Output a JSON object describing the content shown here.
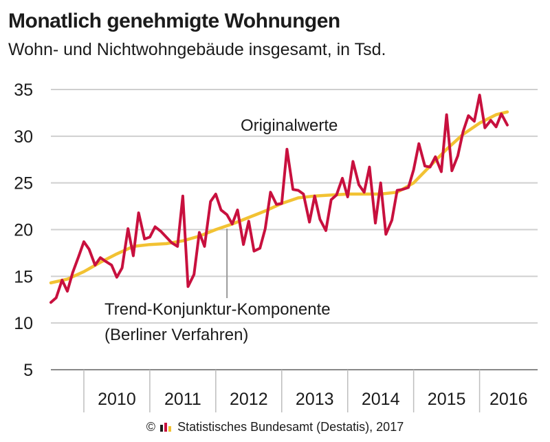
{
  "title": "Monatlich genehmigte Wohnungen",
  "subtitle": "Wohn- und Nichtwohngebäude insgesamt, in Tsd.",
  "footer": {
    "copyright_symbol": "©",
    "text": "Statistisches Bundesamt (Destatis), 2017"
  },
  "colors": {
    "original": "#c8103e",
    "trend": "#f2c233",
    "grid": "#cfcfcf",
    "text": "#1b1b1b"
  },
  "chart_data": {
    "type": "line",
    "title": "Monatlich genehmigte Wohnungen",
    "subtitle": "Wohn- und Nichtwohngebäude insgesamt, in Tsd.",
    "ylim": [
      5,
      35
    ],
    "yticks": [
      "5",
      "10",
      "15",
      "20",
      "25",
      "30",
      "35"
    ],
    "xlim": [
      2009.5,
      2016.88
    ],
    "xticks": [
      "2010",
      "2011",
      "2012",
      "2013",
      "2014",
      "2015",
      "2016"
    ],
    "grid": "horizontal",
    "series": [
      {
        "name": "Originalwerte",
        "color": "#c8103e",
        "points": [
          [
            2009.5,
            12.2
          ],
          [
            2009.58,
            12.7
          ],
          [
            2009.67,
            14.6
          ],
          [
            2009.75,
            13.4
          ],
          [
            2009.83,
            15.4
          ],
          [
            2009.92,
            17.1
          ],
          [
            2010.0,
            18.7
          ],
          [
            2010.08,
            17.9
          ],
          [
            2010.17,
            16.2
          ],
          [
            2010.25,
            17.0
          ],
          [
            2010.33,
            16.6
          ],
          [
            2010.42,
            16.2
          ],
          [
            2010.5,
            14.9
          ],
          [
            2010.58,
            15.9
          ],
          [
            2010.67,
            20.1
          ],
          [
            2010.75,
            17.2
          ],
          [
            2010.83,
            21.8
          ],
          [
            2010.92,
            19.0
          ],
          [
            2011.0,
            19.2
          ],
          [
            2011.08,
            20.3
          ],
          [
            2011.17,
            19.8
          ],
          [
            2011.25,
            19.2
          ],
          [
            2011.33,
            18.6
          ],
          [
            2011.42,
            18.2
          ],
          [
            2011.5,
            23.6
          ],
          [
            2011.58,
            13.9
          ],
          [
            2011.67,
            15.2
          ],
          [
            2011.75,
            19.7
          ],
          [
            2011.83,
            18.2
          ],
          [
            2011.92,
            23.0
          ],
          [
            2012.0,
            23.8
          ],
          [
            2012.08,
            22.1
          ],
          [
            2012.17,
            21.6
          ],
          [
            2012.25,
            20.6
          ],
          [
            2012.33,
            22.1
          ],
          [
            2012.42,
            18.4
          ],
          [
            2012.5,
            20.9
          ],
          [
            2012.58,
            17.7
          ],
          [
            2012.67,
            18.0
          ],
          [
            2012.75,
            20.1
          ],
          [
            2012.83,
            24.0
          ],
          [
            2012.92,
            22.7
          ],
          [
            2013.0,
            22.8
          ],
          [
            2013.08,
            28.6
          ],
          [
            2013.17,
            24.3
          ],
          [
            2013.25,
            24.2
          ],
          [
            2013.33,
            23.8
          ],
          [
            2013.42,
            20.8
          ],
          [
            2013.5,
            23.6
          ],
          [
            2013.58,
            21.1
          ],
          [
            2013.67,
            19.9
          ],
          [
            2013.75,
            23.2
          ],
          [
            2013.83,
            23.7
          ],
          [
            2013.92,
            25.5
          ],
          [
            2014.0,
            23.5
          ],
          [
            2014.08,
            27.3
          ],
          [
            2014.17,
            24.8
          ],
          [
            2014.25,
            24.0
          ],
          [
            2014.33,
            26.7
          ],
          [
            2014.42,
            20.7
          ],
          [
            2014.5,
            25.0
          ],
          [
            2014.58,
            19.5
          ],
          [
            2014.67,
            21.0
          ],
          [
            2014.75,
            24.2
          ],
          [
            2014.83,
            24.3
          ],
          [
            2014.92,
            24.5
          ],
          [
            2015.0,
            26.4
          ],
          [
            2015.08,
            29.2
          ],
          [
            2015.17,
            26.8
          ],
          [
            2015.25,
            26.7
          ],
          [
            2015.33,
            27.8
          ],
          [
            2015.42,
            26.2
          ],
          [
            2015.5,
            32.3
          ],
          [
            2015.58,
            26.3
          ],
          [
            2015.67,
            27.9
          ],
          [
            2015.75,
            30.5
          ],
          [
            2015.83,
            32.2
          ],
          [
            2015.92,
            31.6
          ],
          [
            2016.0,
            34.4
          ],
          [
            2016.08,
            30.9
          ],
          [
            2016.17,
            31.7
          ],
          [
            2016.25,
            31.0
          ],
          [
            2016.33,
            32.4
          ],
          [
            2016.42,
            31.2
          ]
        ]
      },
      {
        "name": "Trend-Konjunktur-Komponente",
        "color": "#f2c233",
        "points": [
          [
            2009.5,
            14.3
          ],
          [
            2009.75,
            14.7
          ],
          [
            2010.0,
            15.5
          ],
          [
            2010.25,
            16.5
          ],
          [
            2010.5,
            17.4
          ],
          [
            2010.75,
            18.2
          ],
          [
            2011.0,
            18.4
          ],
          [
            2011.25,
            18.5
          ],
          [
            2011.5,
            18.8
          ],
          [
            2011.75,
            19.3
          ],
          [
            2012.0,
            20.0
          ],
          [
            2012.25,
            20.6
          ],
          [
            2012.5,
            21.3
          ],
          [
            2012.75,
            22.0
          ],
          [
            2013.0,
            22.8
          ],
          [
            2013.25,
            23.4
          ],
          [
            2013.5,
            23.6
          ],
          [
            2013.75,
            23.7
          ],
          [
            2014.0,
            23.8
          ],
          [
            2014.25,
            23.8
          ],
          [
            2014.5,
            23.8
          ],
          [
            2014.75,
            24.0
          ],
          [
            2015.0,
            25.0
          ],
          [
            2015.25,
            26.8
          ],
          [
            2015.5,
            28.6
          ],
          [
            2015.75,
            30.2
          ],
          [
            2016.0,
            31.4
          ],
          [
            2016.25,
            32.3
          ],
          [
            2016.42,
            32.6
          ]
        ]
      }
    ],
    "annotations": {
      "original_label": "Originalwerte",
      "trend_label_line1": "Trend-Konjunktur-Komponente",
      "trend_label_line2": "(Berliner Verfahren)",
      "trend_leader_x": 2012.17
    }
  }
}
